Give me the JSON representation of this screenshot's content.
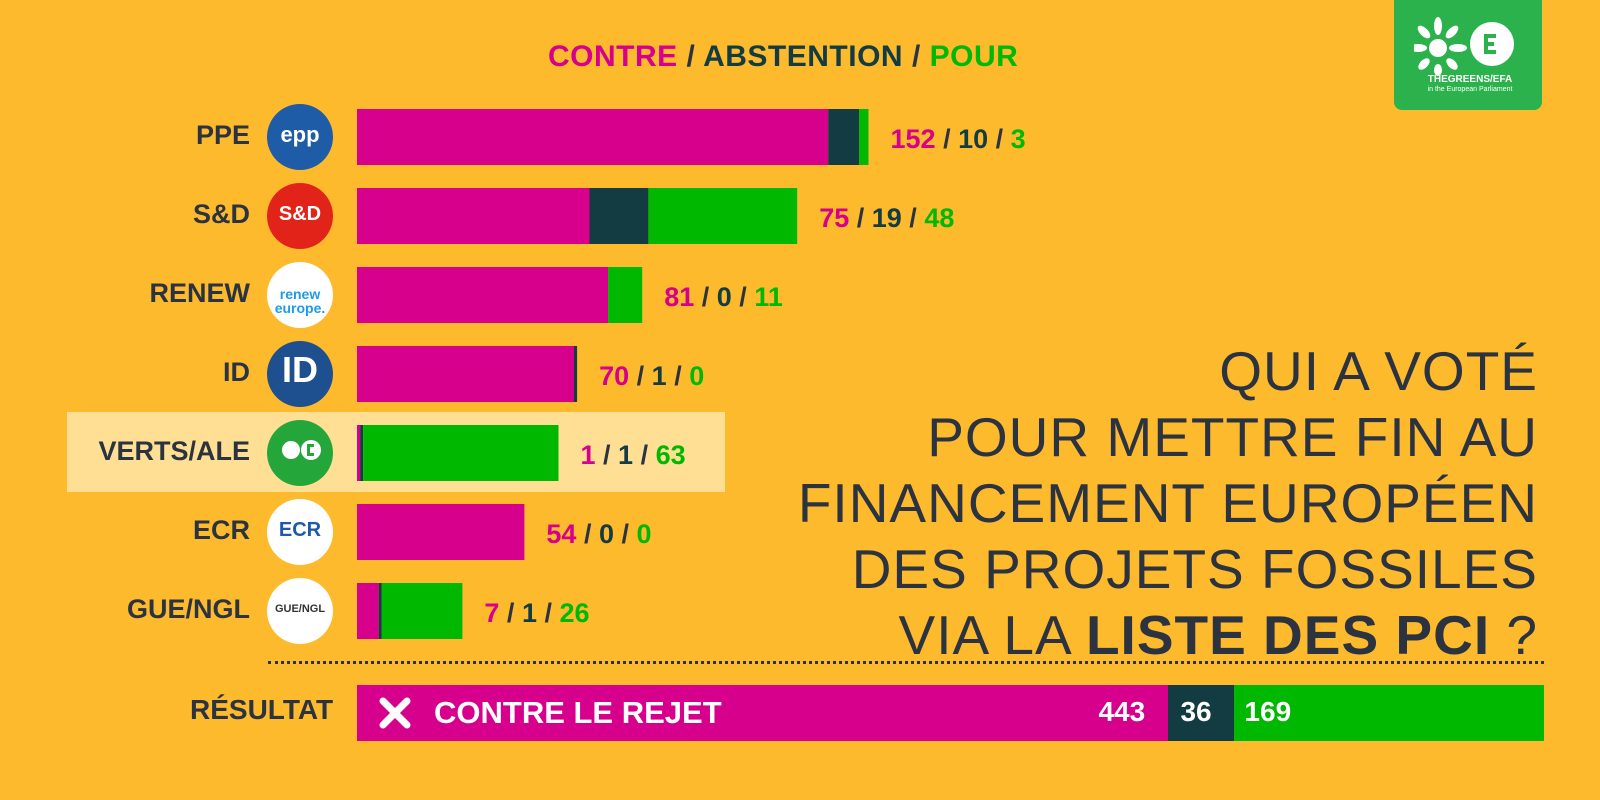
{
  "colors": {
    "contre": "#D6008C",
    "abstention": "#133C42",
    "pour": "#00B800",
    "background": "#FDBA2D",
    "highlight": "#FFDF94",
    "text": "#2C3340"
  },
  "legend": {
    "contre": "CONTRE",
    "abstention": "ABSTENTION",
    "pour": "POUR",
    "separator": "/"
  },
  "logo": {
    "line1": "THEGREENS/EFA",
    "line2": "in the European Parliament",
    "icon": "greens-efa-logo-icon"
  },
  "question": {
    "line1": "QUI A VOTÉ",
    "line2": "POUR METTRE FIN AU",
    "line3": "FINANCEMENT EUROPÉEN",
    "line4": "DES PROJETS FOSSILES",
    "line5_prefix": "VIA LA ",
    "line5_bold": "LISTE DES PCI",
    "line5_suffix": " ?"
  },
  "groups": [
    {
      "label": "PPE",
      "badge_text": "epp",
      "badge_icon": "epp-logo-icon",
      "highlighted": false
    },
    {
      "label": "S&D",
      "badge_text": "S&D",
      "badge_icon": "sd-logo-icon",
      "highlighted": false
    },
    {
      "label": "RENEW",
      "badge_text": "renew europe.",
      "badge_icon": "renew-logo-icon",
      "highlighted": false
    },
    {
      "label": "ID",
      "badge_text": "ID",
      "badge_icon": "id-logo-icon",
      "highlighted": false
    },
    {
      "label": "VERTS/ALE",
      "badge_text": "",
      "badge_icon": "greens-logo-icon",
      "highlighted": true
    },
    {
      "label": "ECR",
      "badge_text": "ECR",
      "badge_icon": "ecr-logo-icon",
      "highlighted": false
    },
    {
      "label": "GUE/NGL",
      "badge_text": "GUE/NGL",
      "badge_icon": "gue-logo-icon",
      "highlighted": false
    }
  ],
  "chart_data": {
    "type": "bar",
    "orientation": "horizontal",
    "stacked": true,
    "title": "CONTRE / ABSTENTION / POUR",
    "categories": [
      "PPE",
      "S&D",
      "RENEW",
      "ID",
      "VERTS/ALE",
      "ECR",
      "GUE/NGL"
    ],
    "series": [
      {
        "name": "CONTRE",
        "values": [
          152,
          75,
          81,
          70,
          1,
          54,
          7
        ]
      },
      {
        "name": "ABSTENTION",
        "values": [
          10,
          19,
          0,
          1,
          1,
          0,
          1
        ]
      },
      {
        "name": "POUR",
        "values": [
          3,
          48,
          11,
          0,
          63,
          0,
          26
        ]
      }
    ],
    "grid": false,
    "legend_placement": "top"
  },
  "result": {
    "label": "RÉSULTAT",
    "text": "CONTRE LE REJET",
    "icon": "x-icon",
    "contre": 443,
    "abstention": 36,
    "pour": 169
  }
}
